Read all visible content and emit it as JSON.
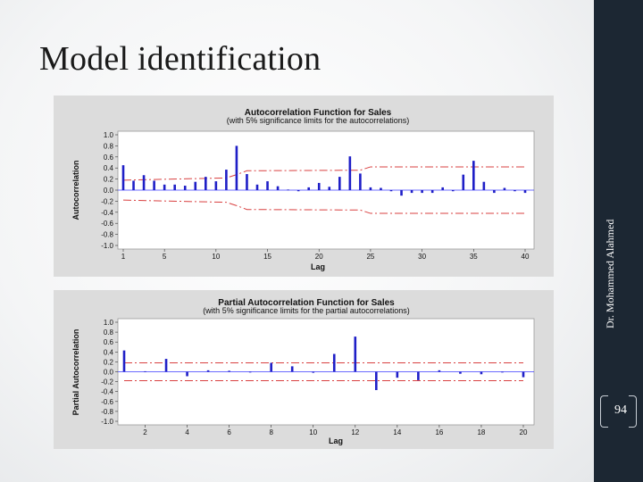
{
  "slide": {
    "title": "Model identification",
    "author": "Dr. Mohammed Alahmed",
    "page_number": "94"
  },
  "chart_data": [
    {
      "type": "bar",
      "title": "Autocorrelation Function for Sales",
      "subtitle": "(with 5% significance limits for the autocorrelations)",
      "xlabel": "Lag",
      "ylabel": "Autocorrelation",
      "ylim": [
        -1.0,
        1.0
      ],
      "yticks": [
        "1.0",
        "0.8",
        "0.6",
        "0.4",
        "0.2",
        "0.0",
        "-0.2",
        "-0.4",
        "-0.6",
        "-0.8",
        "-1.0"
      ],
      "xticks": [
        "1",
        "5",
        "10",
        "15",
        "20",
        "25",
        "30",
        "35",
        "40"
      ],
      "x": [
        1,
        2,
        3,
        4,
        5,
        6,
        7,
        8,
        9,
        10,
        11,
        12,
        13,
        14,
        15,
        16,
        17,
        18,
        19,
        20,
        21,
        22,
        23,
        24,
        25,
        26,
        27,
        28,
        29,
        30,
        31,
        32,
        33,
        34,
        35,
        36,
        37,
        38,
        39,
        40
      ],
      "values": [
        0.45,
        0.17,
        0.27,
        0.17,
        0.1,
        0.1,
        0.08,
        0.15,
        0.24,
        0.16,
        0.37,
        0.8,
        0.29,
        0.1,
        0.16,
        0.07,
        0.01,
        -0.02,
        0.05,
        0.13,
        0.06,
        0.24,
        0.61,
        0.3,
        0.05,
        0.04,
        -0.02,
        -0.1,
        -0.05,
        -0.05,
        -0.05,
        0.05,
        -0.02,
        0.28,
        0.53,
        0.15,
        -0.05,
        0.04,
        -0.02,
        -0.05
      ],
      "significance_limits": [
        {
          "lag": 1,
          "value": 0.18
        },
        {
          "lag": 11,
          "value": 0.22
        },
        {
          "lag": 12,
          "value": 0.28
        },
        {
          "lag": 13,
          "value": 0.35
        },
        {
          "lag": 24,
          "value": 0.36
        },
        {
          "lag": 25,
          "value": 0.42
        },
        {
          "lag": 40,
          "value": 0.42
        }
      ],
      "bar_color": "#1f1fc7",
      "limit_color": "#d94040"
    },
    {
      "type": "bar",
      "title": "Partial Autocorrelation Function for Sales",
      "subtitle": "(with 5% significance limits for the partial autocorrelations)",
      "xlabel": "Lag",
      "ylabel": "Partial Autocorrelation",
      "ylim": [
        -1.0,
        1.0
      ],
      "yticks": [
        "1.0",
        "0.8",
        "0.6",
        "0.4",
        "0.2",
        "0.0",
        "-0.2",
        "-0.4",
        "-0.6",
        "-0.8",
        "-1.0"
      ],
      "xticks": [
        "2",
        "4",
        "6",
        "8",
        "10",
        "12",
        "14",
        "16",
        "18",
        "20"
      ],
      "x": [
        1,
        2,
        3,
        4,
        5,
        6,
        7,
        8,
        9,
        10,
        11,
        12,
        13,
        14,
        15,
        16,
        17,
        18,
        19,
        20
      ],
      "values": [
        0.43,
        0.01,
        0.26,
        -0.09,
        0.03,
        0.02,
        0.0,
        0.18,
        0.11,
        -0.02,
        0.36,
        0.71,
        -0.37,
        -0.12,
        -0.17,
        0.03,
        -0.04,
        -0.05,
        0.0,
        -0.11
      ],
      "significance_limit": 0.18,
      "bar_color": "#1f1fc7",
      "limit_color": "#d94040"
    }
  ]
}
